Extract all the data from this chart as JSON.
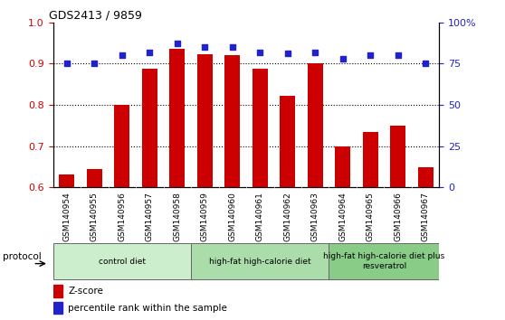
{
  "title": "GDS2413 / 9859",
  "samples": [
    "GSM140954",
    "GSM140955",
    "GSM140956",
    "GSM140957",
    "GSM140958",
    "GSM140959",
    "GSM140960",
    "GSM140961",
    "GSM140962",
    "GSM140963",
    "GSM140964",
    "GSM140965",
    "GSM140966",
    "GSM140967"
  ],
  "zscore": [
    0.632,
    0.645,
    0.8,
    0.888,
    0.935,
    0.922,
    0.92,
    0.888,
    0.822,
    0.9,
    0.7,
    0.735,
    0.75,
    0.648
  ],
  "percentile": [
    75,
    75,
    80,
    82,
    87,
    85,
    85,
    82,
    81,
    82,
    78,
    80,
    80,
    75
  ],
  "zscore_color": "#cc0000",
  "percentile_color": "#2222cc",
  "ylim_left": [
    0.6,
    1.0
  ],
  "ylim_right": [
    0,
    100
  ],
  "yticks_left": [
    0.6,
    0.7,
    0.8,
    0.9,
    1.0
  ],
  "yticks_right": [
    0,
    25,
    50,
    75,
    100
  ],
  "ytick_labels_right": [
    "0",
    "25",
    "50",
    "75",
    "100%"
  ],
  "groups": [
    {
      "label": "control diet",
      "start": 0,
      "end": 4,
      "color": "#cceecc"
    },
    {
      "label": "high-fat high-calorie diet",
      "start": 5,
      "end": 9,
      "color": "#aaddaa"
    },
    {
      "label": "high-fat high-calorie diet plus\nresveratrol",
      "start": 10,
      "end": 13,
      "color": "#88cc88"
    }
  ],
  "protocol_label": "protocol",
  "bar_width": 0.55,
  "background_color": "#ffffff",
  "tick_label_color_left": "#cc0000",
  "tick_label_color_right": "#2222cc",
  "xtick_bg_color": "#cccccc",
  "top_border_color": "#000000"
}
